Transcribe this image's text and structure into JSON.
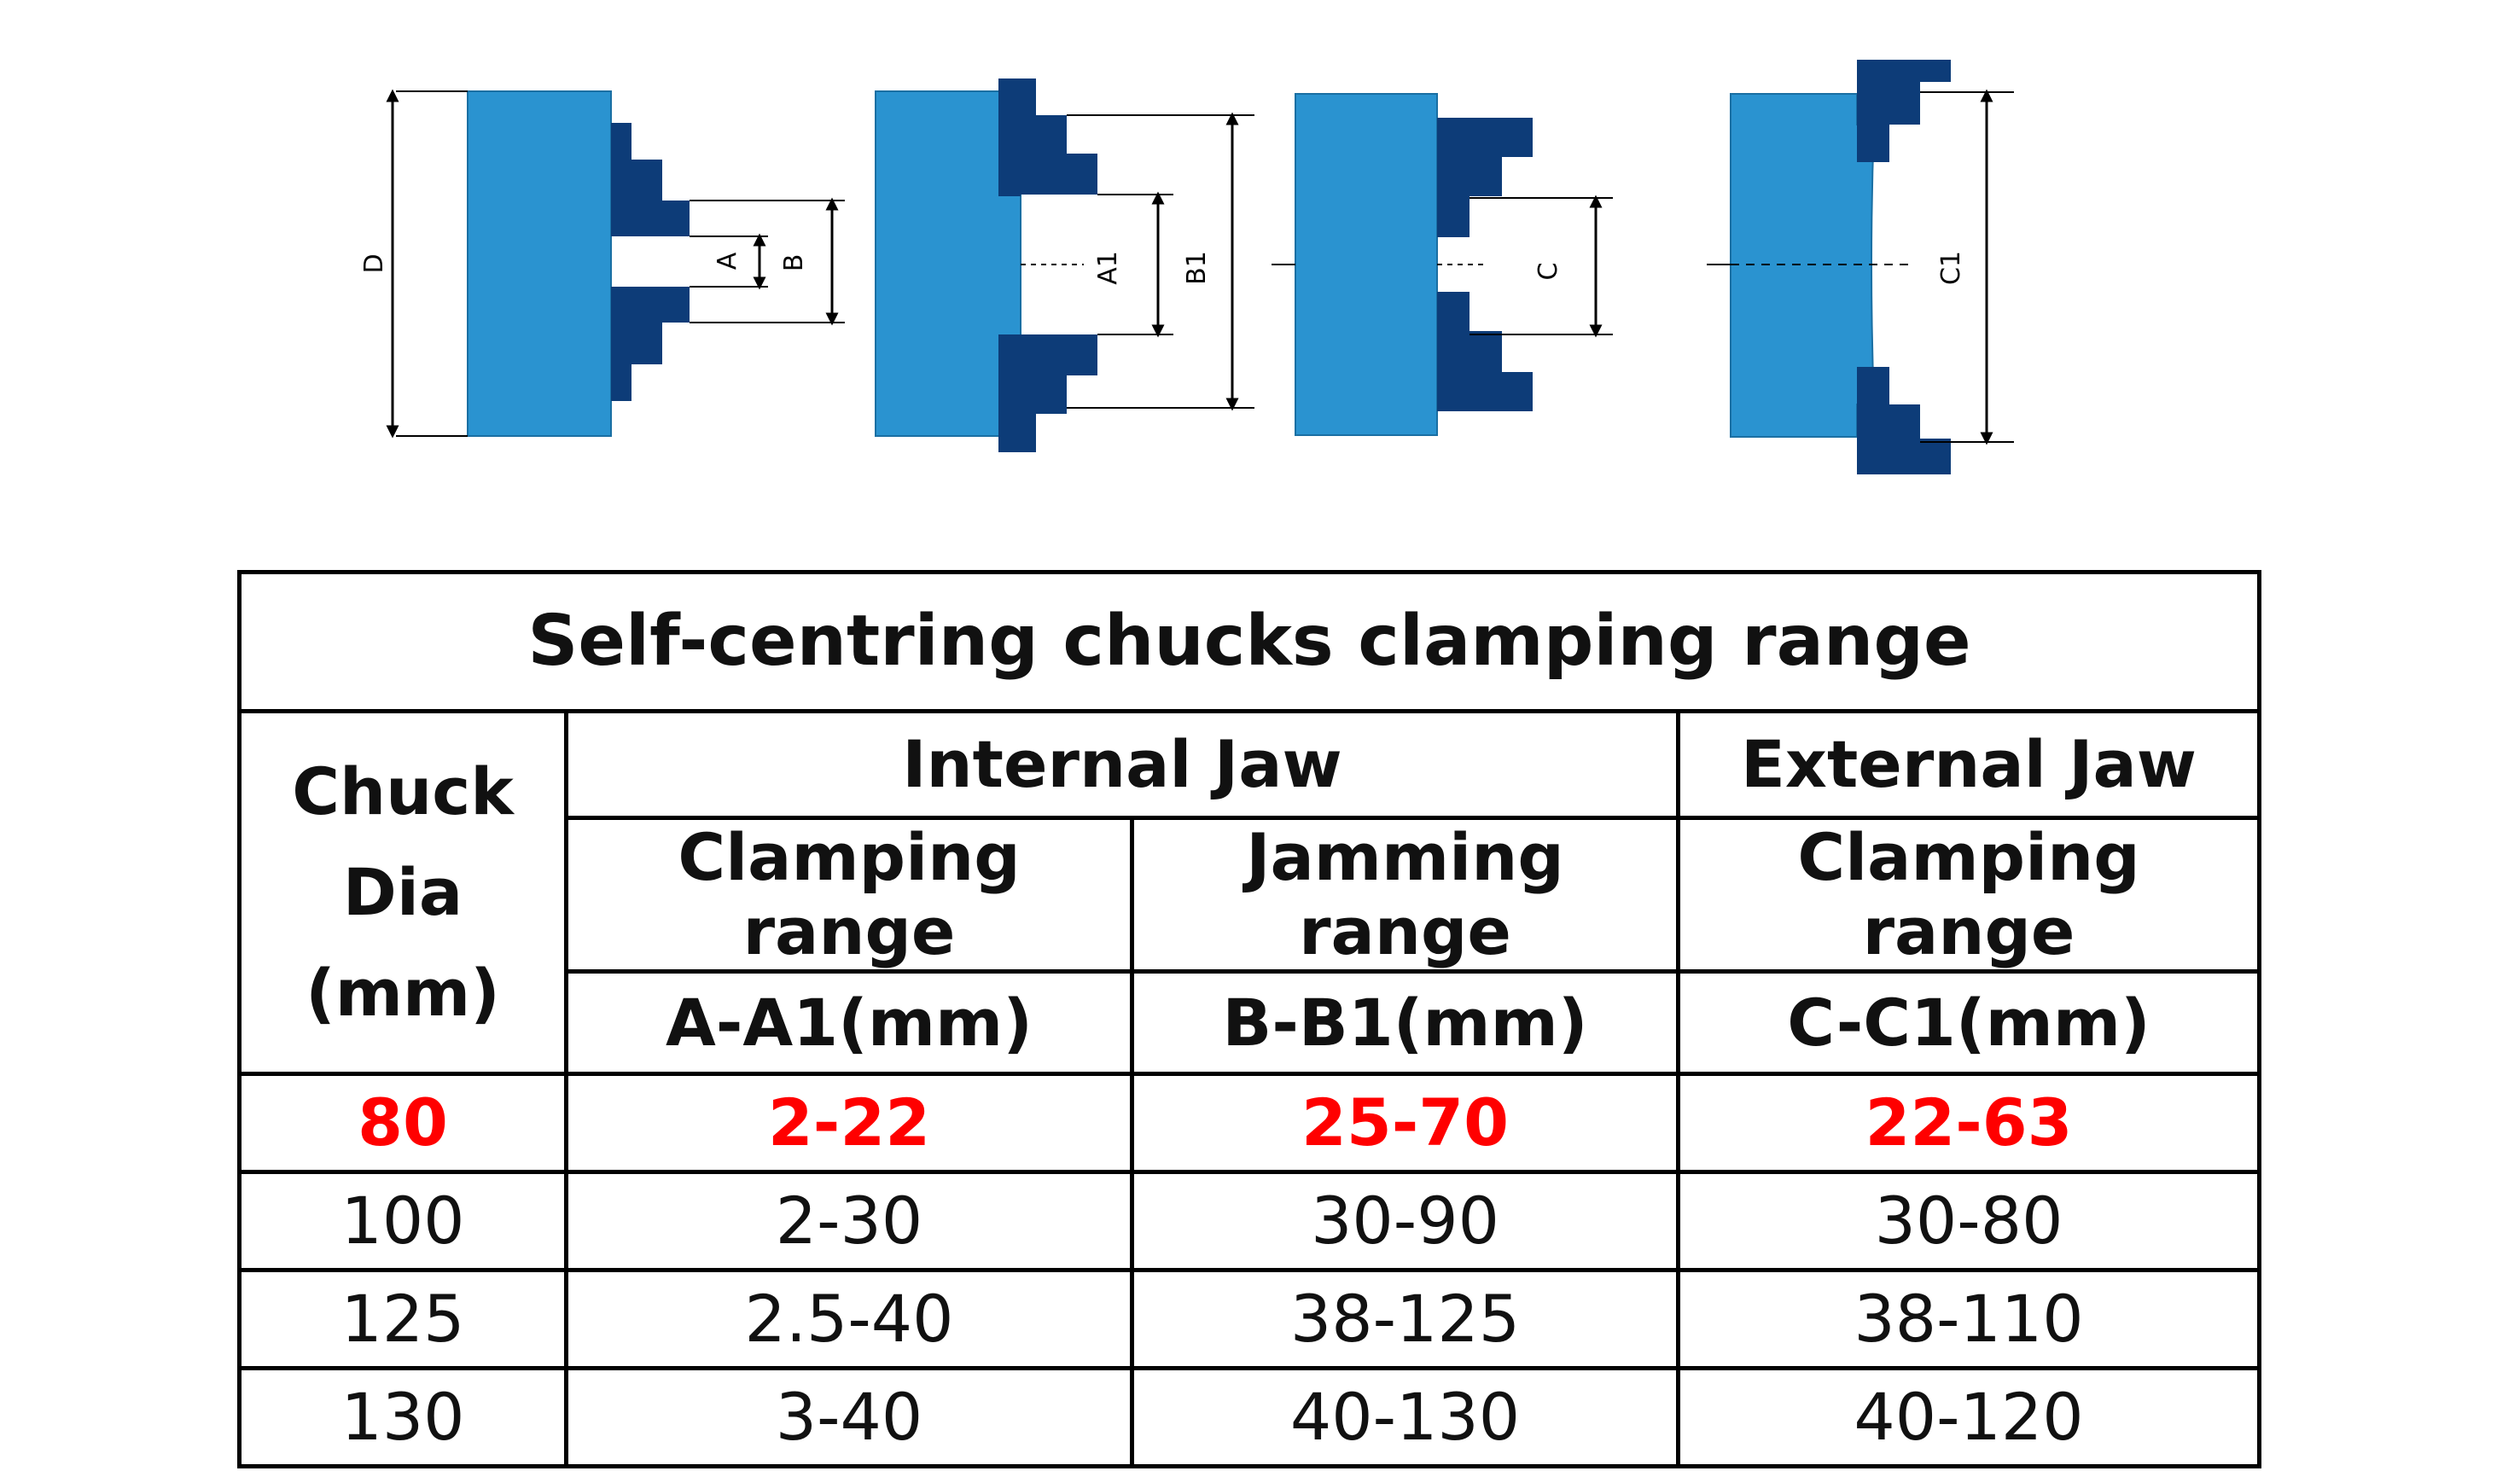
{
  "diagram": {
    "labels": {
      "d": "D",
      "a": "A",
      "b": "B",
      "a1": "A1",
      "b1": "B1",
      "c": "C",
      "c1": "C1"
    },
    "colors": {
      "body": "#2a93d0",
      "jaw": "#0d3c78"
    }
  },
  "table": {
    "title": "Self-centring chucks clamping range",
    "headers": {
      "chuck_line1": "Chuck",
      "chuck_line2": "Dia",
      "chuck_line3": "(mm)",
      "internal_jaw": "Internal Jaw",
      "external_jaw": "External Jaw",
      "clamping_range": "Clamping range",
      "jamming_range": "Jamming range",
      "clamping_range_ext": "Clamping range",
      "a_a1": "A-A1(mm)",
      "b_b1": "B-B1(mm)",
      "c_c1": "C-C1(mm)"
    },
    "rows": [
      {
        "dia": "80",
        "a": "2-22",
        "b": "25-70",
        "c": "22-63"
      },
      {
        "dia": "100",
        "a": "2-30",
        "b": "30-90",
        "c": "30-80"
      },
      {
        "dia": "125",
        "a": "2.5-40",
        "b": "38-125",
        "c": "38-110"
      },
      {
        "dia": "130",
        "a": "3-40",
        "b": "40-130",
        "c": "40-120"
      }
    ],
    "highlight_color": "#ff0000"
  }
}
